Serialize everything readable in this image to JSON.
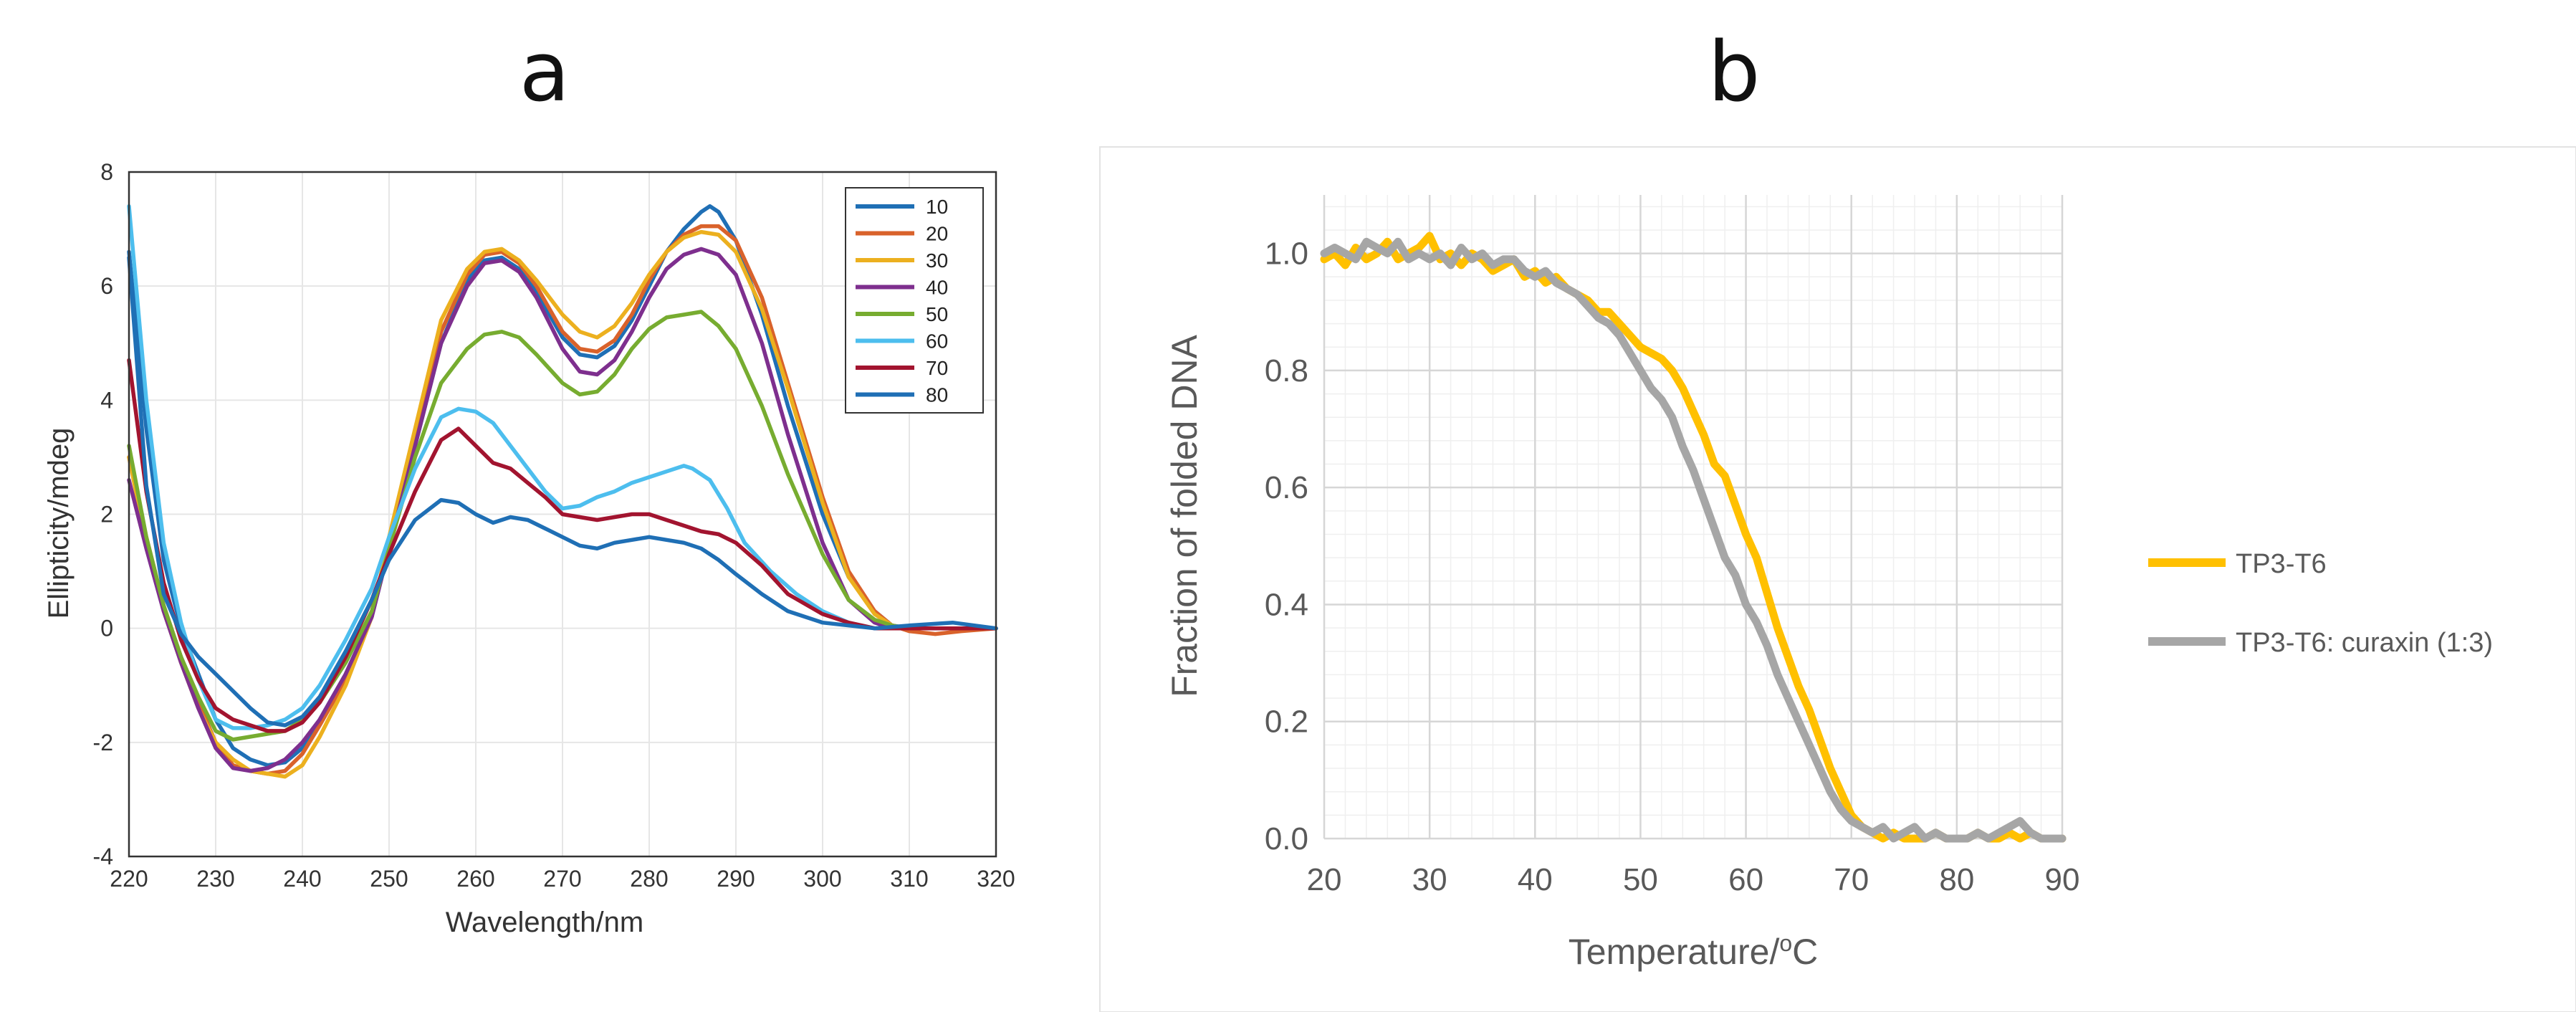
{
  "chart_data": [
    {
      "panel": "a",
      "type": "line",
      "title": "",
      "xlabel": "Wavelength/nm",
      "ylabel": "Ellipticity/mdeg",
      "xlim": [
        220,
        320
      ],
      "ylim": [
        -4,
        8
      ],
      "xticks": [
        220,
        230,
        240,
        250,
        260,
        270,
        280,
        290,
        300,
        310,
        320
      ],
      "yticks": [
        -4,
        -2,
        0,
        2,
        4,
        6,
        8
      ],
      "grid": true,
      "legend_position": "top-right",
      "series": [
        {
          "name": "10",
          "color": "#1f6fb5",
          "x": [
            220,
            222,
            224,
            226,
            228,
            230,
            232,
            234,
            236,
            238,
            240,
            242,
            245,
            248,
            250,
            253,
            256,
            259,
            261,
            263,
            265,
            267,
            270,
            272,
            274,
            276,
            278,
            280,
            282,
            284,
            286,
            287,
            288,
            290,
            293,
            296,
            300,
            303,
            306,
            308,
            310,
            313,
            316,
            320
          ],
          "values": [
            6.6,
            3.5,
            1.2,
            0.0,
            -0.8,
            -1.6,
            -2.1,
            -2.3,
            -2.4,
            -2.35,
            -2.1,
            -1.6,
            -0.8,
            0.2,
            1.4,
            3.2,
            5.0,
            6.1,
            6.45,
            6.5,
            6.3,
            5.9,
            5.1,
            4.8,
            4.75,
            4.95,
            5.4,
            6.0,
            6.6,
            7.0,
            7.3,
            7.4,
            7.3,
            6.8,
            5.5,
            3.9,
            2.0,
            0.9,
            0.3,
            0.05,
            0.0,
            0.0,
            0.0,
            0.0
          ]
        },
        {
          "name": "20",
          "color": "#d9622b",
          "x": [
            220,
            222,
            224,
            226,
            228,
            230,
            232,
            234,
            236,
            238,
            240,
            242,
            245,
            248,
            250,
            253,
            256,
            259,
            261,
            263,
            265,
            267,
            270,
            272,
            274,
            276,
            278,
            280,
            282,
            284,
            286,
            288,
            290,
            293,
            296,
            300,
            303,
            306,
            308,
            310,
            313,
            316,
            320
          ],
          "values": [
            3.0,
            1.6,
            0.4,
            -0.5,
            -1.3,
            -2.0,
            -2.4,
            -2.5,
            -2.55,
            -2.5,
            -2.2,
            -1.7,
            -0.9,
            0.2,
            1.5,
            3.3,
            5.2,
            6.2,
            6.55,
            6.6,
            6.4,
            6.0,
            5.2,
            4.9,
            4.85,
            5.05,
            5.5,
            6.1,
            6.6,
            6.9,
            7.05,
            7.05,
            6.8,
            5.8,
            4.3,
            2.3,
            1.0,
            0.3,
            0.05,
            -0.05,
            -0.1,
            -0.05,
            0.0
          ]
        },
        {
          "name": "30",
          "color": "#ecb01f",
          "x": [
            220,
            222,
            224,
            226,
            228,
            230,
            232,
            234,
            236,
            238,
            240,
            242,
            245,
            248,
            250,
            253,
            256,
            259,
            261,
            263,
            265,
            267,
            270,
            272,
            274,
            276,
            278,
            280,
            282,
            284,
            286,
            288,
            290,
            293,
            296,
            300,
            303,
            306,
            308,
            310,
            313,
            316,
            320
          ],
          "values": [
            3.0,
            1.5,
            0.3,
            -0.6,
            -1.4,
            -2.0,
            -2.3,
            -2.5,
            -2.55,
            -2.6,
            -2.4,
            -1.9,
            -1.0,
            0.2,
            1.6,
            3.5,
            5.4,
            6.3,
            6.6,
            6.65,
            6.45,
            6.1,
            5.5,
            5.2,
            5.1,
            5.3,
            5.7,
            6.2,
            6.6,
            6.85,
            6.95,
            6.9,
            6.6,
            5.6,
            4.2,
            2.2,
            0.9,
            0.25,
            0.05,
            0.0,
            0.0,
            0.0,
            0.0
          ]
        },
        {
          "name": "40",
          "color": "#7e2f8e",
          "x": [
            220,
            222,
            224,
            226,
            228,
            230,
            232,
            234,
            236,
            238,
            240,
            242,
            245,
            248,
            250,
            253,
            256,
            259,
            261,
            263,
            265,
            267,
            270,
            272,
            274,
            276,
            278,
            280,
            282,
            284,
            286,
            288,
            290,
            293,
            296,
            300,
            303,
            306,
            308,
            310,
            313,
            316,
            320
          ],
          "values": [
            2.6,
            1.4,
            0.3,
            -0.6,
            -1.4,
            -2.1,
            -2.45,
            -2.5,
            -2.45,
            -2.3,
            -2.0,
            -1.6,
            -0.8,
            0.2,
            1.4,
            3.2,
            5.0,
            6.0,
            6.4,
            6.45,
            6.25,
            5.8,
            4.9,
            4.5,
            4.45,
            4.7,
            5.2,
            5.8,
            6.3,
            6.55,
            6.65,
            6.55,
            6.2,
            5.0,
            3.4,
            1.5,
            0.5,
            0.1,
            0.0,
            0.0,
            0.0,
            0.0,
            0.0
          ]
        },
        {
          "name": "50",
          "color": "#77ac30",
          "x": [
            220,
            222,
            224,
            226,
            228,
            230,
            232,
            234,
            236,
            238,
            240,
            242,
            245,
            248,
            250,
            253,
            256,
            259,
            261,
            263,
            265,
            267,
            270,
            272,
            274,
            276,
            278,
            280,
            282,
            284,
            286,
            288,
            290,
            293,
            296,
            300,
            303,
            306,
            308,
            310,
            313,
            316,
            320
          ],
          "values": [
            3.2,
            1.6,
            0.4,
            -0.5,
            -1.2,
            -1.8,
            -1.95,
            -1.9,
            -1.85,
            -1.8,
            -1.6,
            -1.3,
            -0.6,
            0.3,
            1.4,
            3.0,
            4.3,
            4.9,
            5.15,
            5.2,
            5.1,
            4.8,
            4.3,
            4.1,
            4.15,
            4.45,
            4.9,
            5.25,
            5.45,
            5.5,
            5.55,
            5.3,
            4.9,
            3.9,
            2.7,
            1.3,
            0.5,
            0.15,
            0.05,
            0.0,
            0.0,
            0.0,
            0.0
          ]
        },
        {
          "name": "60",
          "color": "#4dbeee",
          "x": [
            220,
            222,
            224,
            226,
            228,
            230,
            232,
            234,
            236,
            238,
            240,
            242,
            245,
            248,
            250,
            253,
            256,
            258,
            260,
            262,
            264,
            266,
            268,
            270,
            272,
            274,
            276,
            278,
            280,
            282,
            284,
            285,
            287,
            289,
            291,
            294,
            297,
            300,
            303,
            306,
            310,
            315,
            320
          ],
          "values": [
            7.4,
            4.0,
            1.5,
            0.1,
            -0.9,
            -1.6,
            -1.75,
            -1.75,
            -1.7,
            -1.6,
            -1.4,
            -1.0,
            -0.2,
            0.7,
            1.6,
            2.8,
            3.7,
            3.85,
            3.8,
            3.6,
            3.2,
            2.8,
            2.4,
            2.1,
            2.15,
            2.3,
            2.4,
            2.55,
            2.65,
            2.75,
            2.85,
            2.8,
            2.6,
            2.1,
            1.5,
            1.0,
            0.6,
            0.3,
            0.1,
            0.0,
            0.0,
            0.0,
            0.0
          ]
        },
        {
          "name": "70",
          "color": "#a2142f",
          "x": [
            220,
            222,
            224,
            226,
            228,
            230,
            232,
            234,
            236,
            238,
            240,
            242,
            245,
            248,
            250,
            253,
            256,
            258,
            260,
            262,
            264,
            266,
            268,
            270,
            272,
            274,
            276,
            278,
            280,
            282,
            284,
            286,
            288,
            290,
            293,
            296,
            300,
            303,
            306,
            310,
            315,
            320
          ],
          "values": [
            4.7,
            2.4,
            0.8,
            -0.2,
            -0.9,
            -1.4,
            -1.6,
            -1.7,
            -1.8,
            -1.8,
            -1.65,
            -1.3,
            -0.5,
            0.5,
            1.3,
            2.4,
            3.3,
            3.5,
            3.2,
            2.9,
            2.8,
            2.55,
            2.3,
            2.0,
            1.95,
            1.9,
            1.95,
            2.0,
            2.0,
            1.9,
            1.8,
            1.7,
            1.65,
            1.5,
            1.1,
            0.6,
            0.25,
            0.1,
            0.0,
            0.0,
            0.0,
            0.0
          ]
        },
        {
          "name": "80",
          "color": "#1f6fb5",
          "x": [
            220,
            222,
            224,
            226,
            228,
            230,
            232,
            234,
            236,
            238,
            240,
            242,
            245,
            248,
            250,
            253,
            256,
            258,
            260,
            262,
            264,
            266,
            268,
            270,
            272,
            274,
            276,
            278,
            280,
            282,
            284,
            286,
            288,
            290,
            293,
            296,
            300,
            303,
            306,
            310,
            315,
            320
          ],
          "values": [
            6.5,
            2.5,
            0.6,
            -0.1,
            -0.5,
            -0.8,
            -1.1,
            -1.4,
            -1.65,
            -1.7,
            -1.55,
            -1.2,
            -0.4,
            0.5,
            1.2,
            1.9,
            2.25,
            2.2,
            2.0,
            1.85,
            1.95,
            1.9,
            1.75,
            1.6,
            1.45,
            1.4,
            1.5,
            1.55,
            1.6,
            1.55,
            1.5,
            1.4,
            1.2,
            0.95,
            0.6,
            0.3,
            0.1,
            0.05,
            0.0,
            0.05,
            0.1,
            0.0
          ]
        }
      ]
    },
    {
      "panel": "b",
      "type": "line",
      "title": "",
      "xlabel": "Temperature/",
      "xlabel_sup": "o",
      "xlabel_unit": "C",
      "ylabel": "Fraction of folded DNA",
      "xlim": [
        20,
        90
      ],
      "ylim": [
        0,
        1.1
      ],
      "xticks": [
        20,
        30,
        40,
        50,
        60,
        70,
        80,
        90
      ],
      "yticks": [
        0.0,
        0.2,
        0.4,
        0.6,
        0.8,
        1.0
      ],
      "ytick_labels": [
        "0.0",
        "0.2",
        "0.4",
        "0.6",
        "0.8",
        "1.0"
      ],
      "grid": true,
      "legend_position": "right",
      "series": [
        {
          "name": "TP3-T6",
          "color": "#ffc000",
          "x": [
            20,
            21,
            22,
            23,
            24,
            25,
            26,
            27,
            28,
            29,
            30,
            31,
            32,
            33,
            34,
            35,
            36,
            37,
            38,
            39,
            40,
            41,
            42,
            43,
            44,
            45,
            46,
            47,
            48,
            49,
            50,
            51,
            52,
            53,
            54,
            55,
            56,
            57,
            58,
            59,
            60,
            61,
            62,
            63,
            64,
            65,
            66,
            67,
            68,
            69,
            70,
            71,
            72,
            73,
            74,
            75,
            76,
            77,
            78,
            79,
            80,
            81,
            82,
            83,
            84,
            85,
            86,
            87,
            88,
            89,
            90
          ],
          "values": [
            0.99,
            1.0,
            0.98,
            1.01,
            0.99,
            1.0,
            1.02,
            0.99,
            1.0,
            1.01,
            1.03,
            0.99,
            1.0,
            0.98,
            1.0,
            0.99,
            0.97,
            0.98,
            0.99,
            0.96,
            0.97,
            0.95,
            0.96,
            0.94,
            0.93,
            0.92,
            0.9,
            0.9,
            0.88,
            0.86,
            0.84,
            0.83,
            0.82,
            0.8,
            0.77,
            0.73,
            0.69,
            0.64,
            0.62,
            0.57,
            0.52,
            0.48,
            0.42,
            0.36,
            0.31,
            0.26,
            0.22,
            0.17,
            0.12,
            0.08,
            0.04,
            0.02,
            0.01,
            0.0,
            0.01,
            0.0,
            0.0,
            0.0,
            0.01,
            0.0,
            0.0,
            0.0,
            0.01,
            0.0,
            0.0,
            0.01,
            0.0,
            0.01,
            0.0,
            0.0,
            0.0
          ]
        },
        {
          "name": "TP3-T6: curaxin (1:3)",
          "color": "#a6a6a6",
          "x": [
            20,
            21,
            22,
            23,
            24,
            25,
            26,
            27,
            28,
            29,
            30,
            31,
            32,
            33,
            34,
            35,
            36,
            37,
            38,
            39,
            40,
            41,
            42,
            43,
            44,
            45,
            46,
            47,
            48,
            49,
            50,
            51,
            52,
            53,
            54,
            55,
            56,
            57,
            58,
            59,
            60,
            61,
            62,
            63,
            64,
            65,
            66,
            67,
            68,
            69,
            70,
            71,
            72,
            73,
            74,
            75,
            76,
            77,
            78,
            79,
            80,
            81,
            82,
            83,
            84,
            85,
            86,
            87,
            88,
            89,
            90
          ],
          "values": [
            1.0,
            1.01,
            1.0,
            0.99,
            1.02,
            1.01,
            1.0,
            1.02,
            0.99,
            1.0,
            0.99,
            1.0,
            0.98,
            1.01,
            0.99,
            1.0,
            0.98,
            0.99,
            0.99,
            0.97,
            0.96,
            0.97,
            0.95,
            0.94,
            0.93,
            0.91,
            0.89,
            0.88,
            0.86,
            0.83,
            0.8,
            0.77,
            0.75,
            0.72,
            0.67,
            0.63,
            0.58,
            0.53,
            0.48,
            0.45,
            0.4,
            0.37,
            0.33,
            0.28,
            0.24,
            0.2,
            0.16,
            0.12,
            0.08,
            0.05,
            0.03,
            0.02,
            0.01,
            0.02,
            0.0,
            0.01,
            0.02,
            0.0,
            0.01,
            0.0,
            0.0,
            0.0,
            0.01,
            0.0,
            0.01,
            0.02,
            0.03,
            0.01,
            0.0,
            0.0,
            0.0
          ]
        }
      ]
    }
  ]
}
